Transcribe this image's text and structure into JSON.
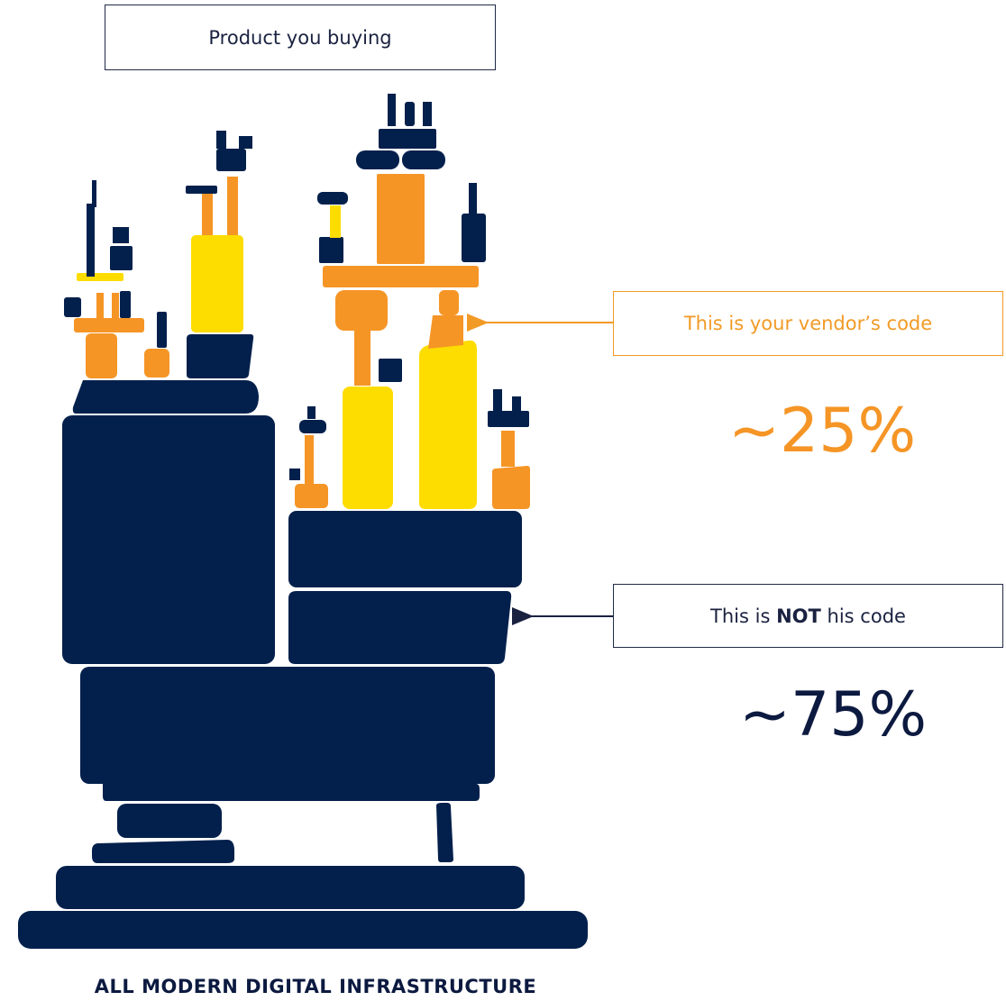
{
  "labels": {
    "product": "Product you buying",
    "vendor": "This is your vendor’s code",
    "not_code_before": "This is ",
    "not_code_bold": "NOT",
    "not_code_after": " his code",
    "footer": "ALL MODERN DIGITAL INFRASTRUCTURE"
  },
  "percentages": {
    "vendor": "~25%",
    "not_vendor": "~75%"
  },
  "colors": {
    "navy": "#03204c",
    "orange": "#f59526",
    "yellow": "#fddc00"
  }
}
